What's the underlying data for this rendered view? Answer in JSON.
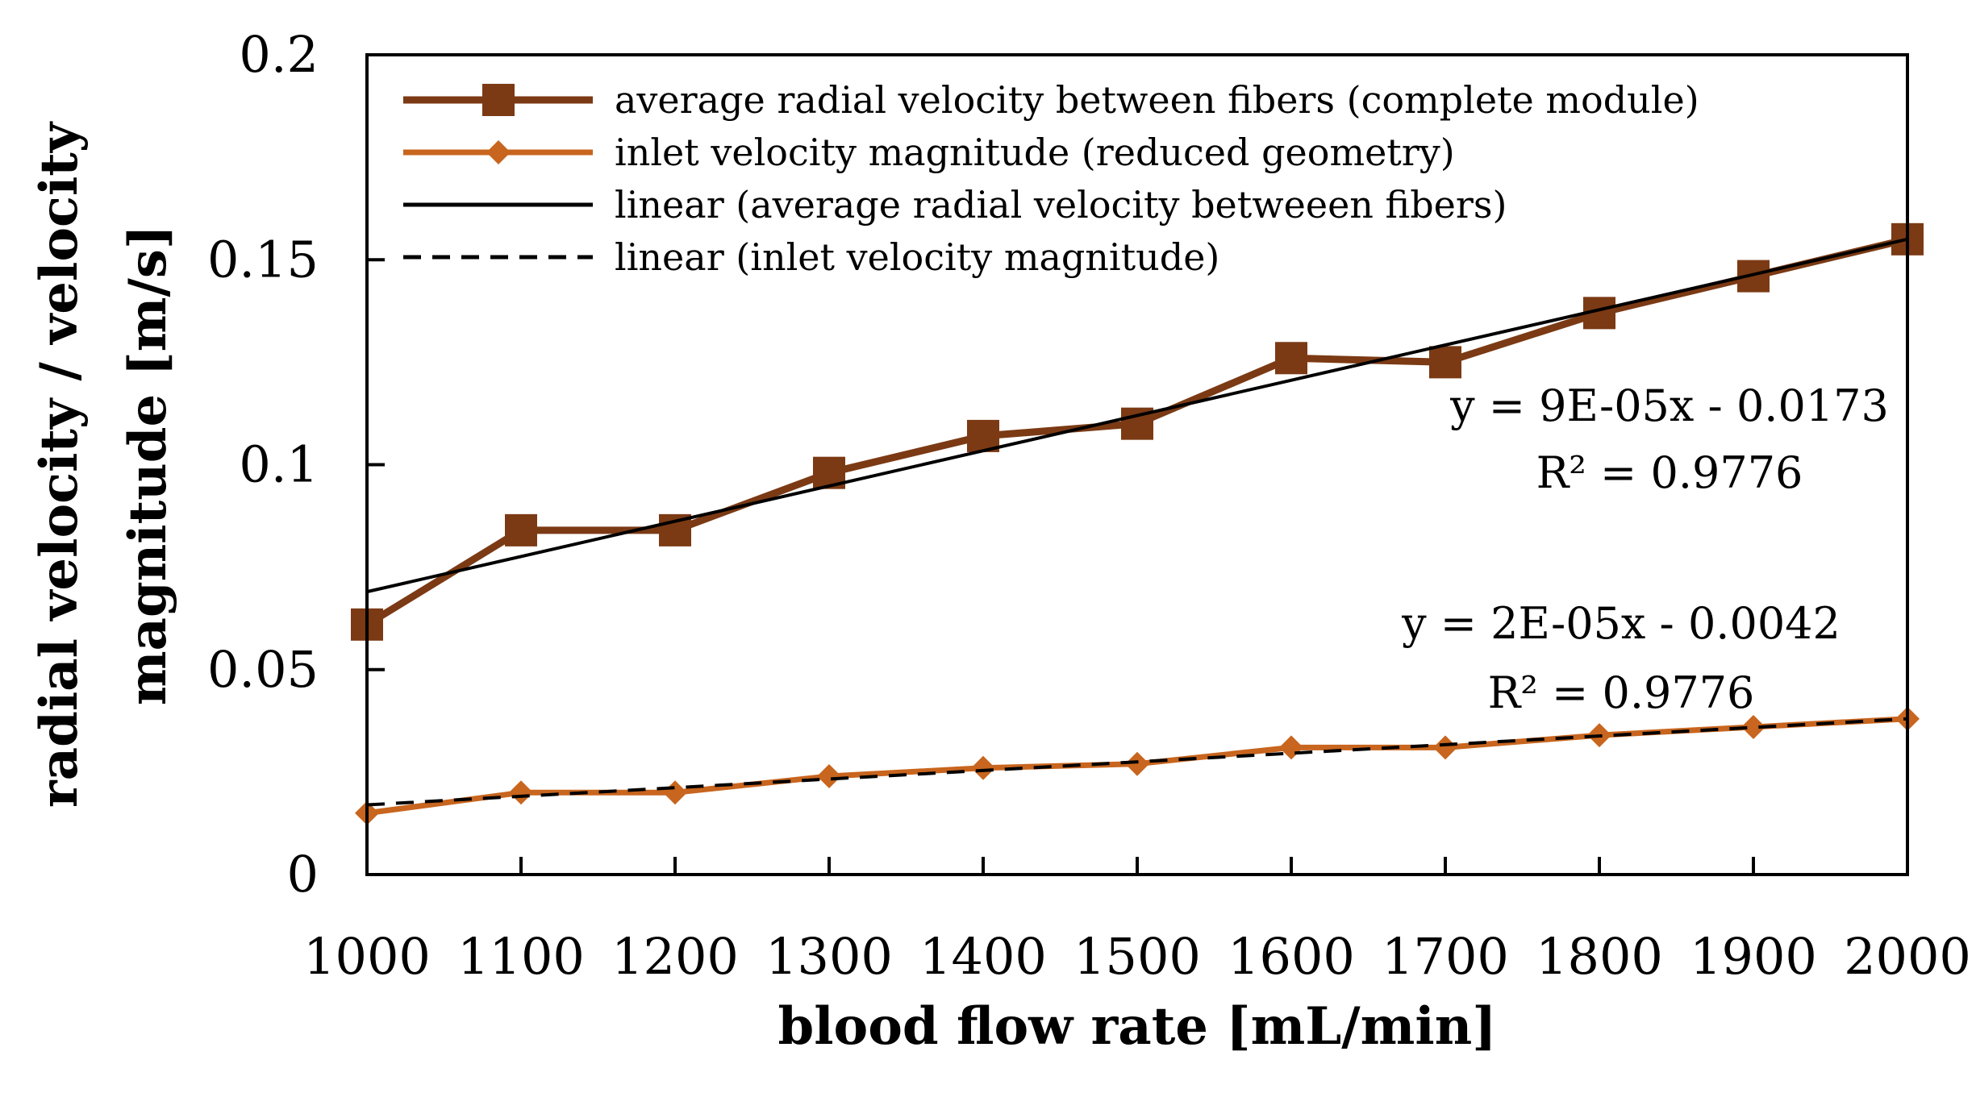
{
  "chart_data": {
    "type": "line",
    "title": "",
    "xlabel": "blood flow rate [mL/min]",
    "ylabel_lines": [
      "radial velocity / velocity",
      "magnitude [m/s]"
    ],
    "xlim": [
      1000,
      2000
    ],
    "ylim": [
      0,
      0.2
    ],
    "x_ticks": [
      "1000",
      "1100",
      "1200",
      "1300",
      "1400",
      "1500",
      "1600",
      "1700",
      "1800",
      "1900",
      "2000"
    ],
    "y_ticks": [
      "0",
      "0.05",
      "0.1",
      "0.15",
      "0.2"
    ],
    "grid": false,
    "legend_position": "top-left",
    "x": [
      1000,
      1100,
      1200,
      1300,
      1400,
      1500,
      1600,
      1700,
      1800,
      1900,
      2000
    ],
    "series": [
      {
        "name": "average radial velocity between fibers (complete module)",
        "marker": "square",
        "color": "#7B3A14",
        "values": [
          0.061,
          0.084,
          0.084,
          0.098,
          0.107,
          0.11,
          0.126,
          0.125,
          0.137,
          0.146,
          0.155
        ]
      },
      {
        "name": "inlet velocity magnitude (reduced geometry)",
        "marker": "diamond",
        "color": "#C8651E",
        "values": [
          0.015,
          0.02,
          0.02,
          0.024,
          0.026,
          0.027,
          0.031,
          0.031,
          0.034,
          0.036,
          0.038
        ]
      }
    ],
    "trendlines": [
      {
        "name": "linear (average radial velocity betweeen fibers)",
        "style": "solid",
        "color": "#000000",
        "start": [
          1000,
          0.069
        ],
        "end": [
          2000,
          0.155
        ]
      },
      {
        "name": "linear (inlet velocity magnitude)",
        "style": "dashed",
        "color": "#000000",
        "start": [
          1000,
          0.017
        ],
        "end": [
          2000,
          0.038
        ]
      }
    ],
    "annotations": [
      {
        "equation": "y = 9E-05x - 0.0173",
        "r2": "R² = 0.9776"
      },
      {
        "equation": "y = 2E-05x - 0.0042",
        "r2": "R² = 0.9776"
      }
    ]
  }
}
